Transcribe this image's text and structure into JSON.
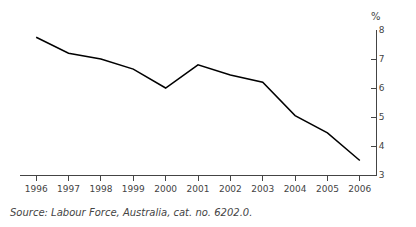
{
  "chart_data": {
    "type": "line",
    "x": [
      1996,
      1997,
      1998,
      1999,
      2000,
      2001,
      2002,
      2003,
      2004,
      2005,
      2006
    ],
    "values": [
      7.75,
      7.2,
      7.0,
      6.65,
      6.0,
      6.8,
      6.45,
      6.2,
      5.05,
      4.45,
      3.5
    ],
    "color": "#000000",
    "xlim": [
      1995.5,
      2006.5
    ],
    "xticks": [
      1996,
      1997,
      1998,
      1999,
      2000,
      2001,
      2002,
      2003,
      2004,
      2005,
      2006
    ],
    "ylim": [
      3,
      8
    ],
    "yticks": [
      3,
      4,
      5,
      6,
      7,
      8
    ],
    "annotations": [
      "%",
      "Source: Labour Force, Australia, cat. no. 6202.0."
    ],
    "grid": false
  }
}
